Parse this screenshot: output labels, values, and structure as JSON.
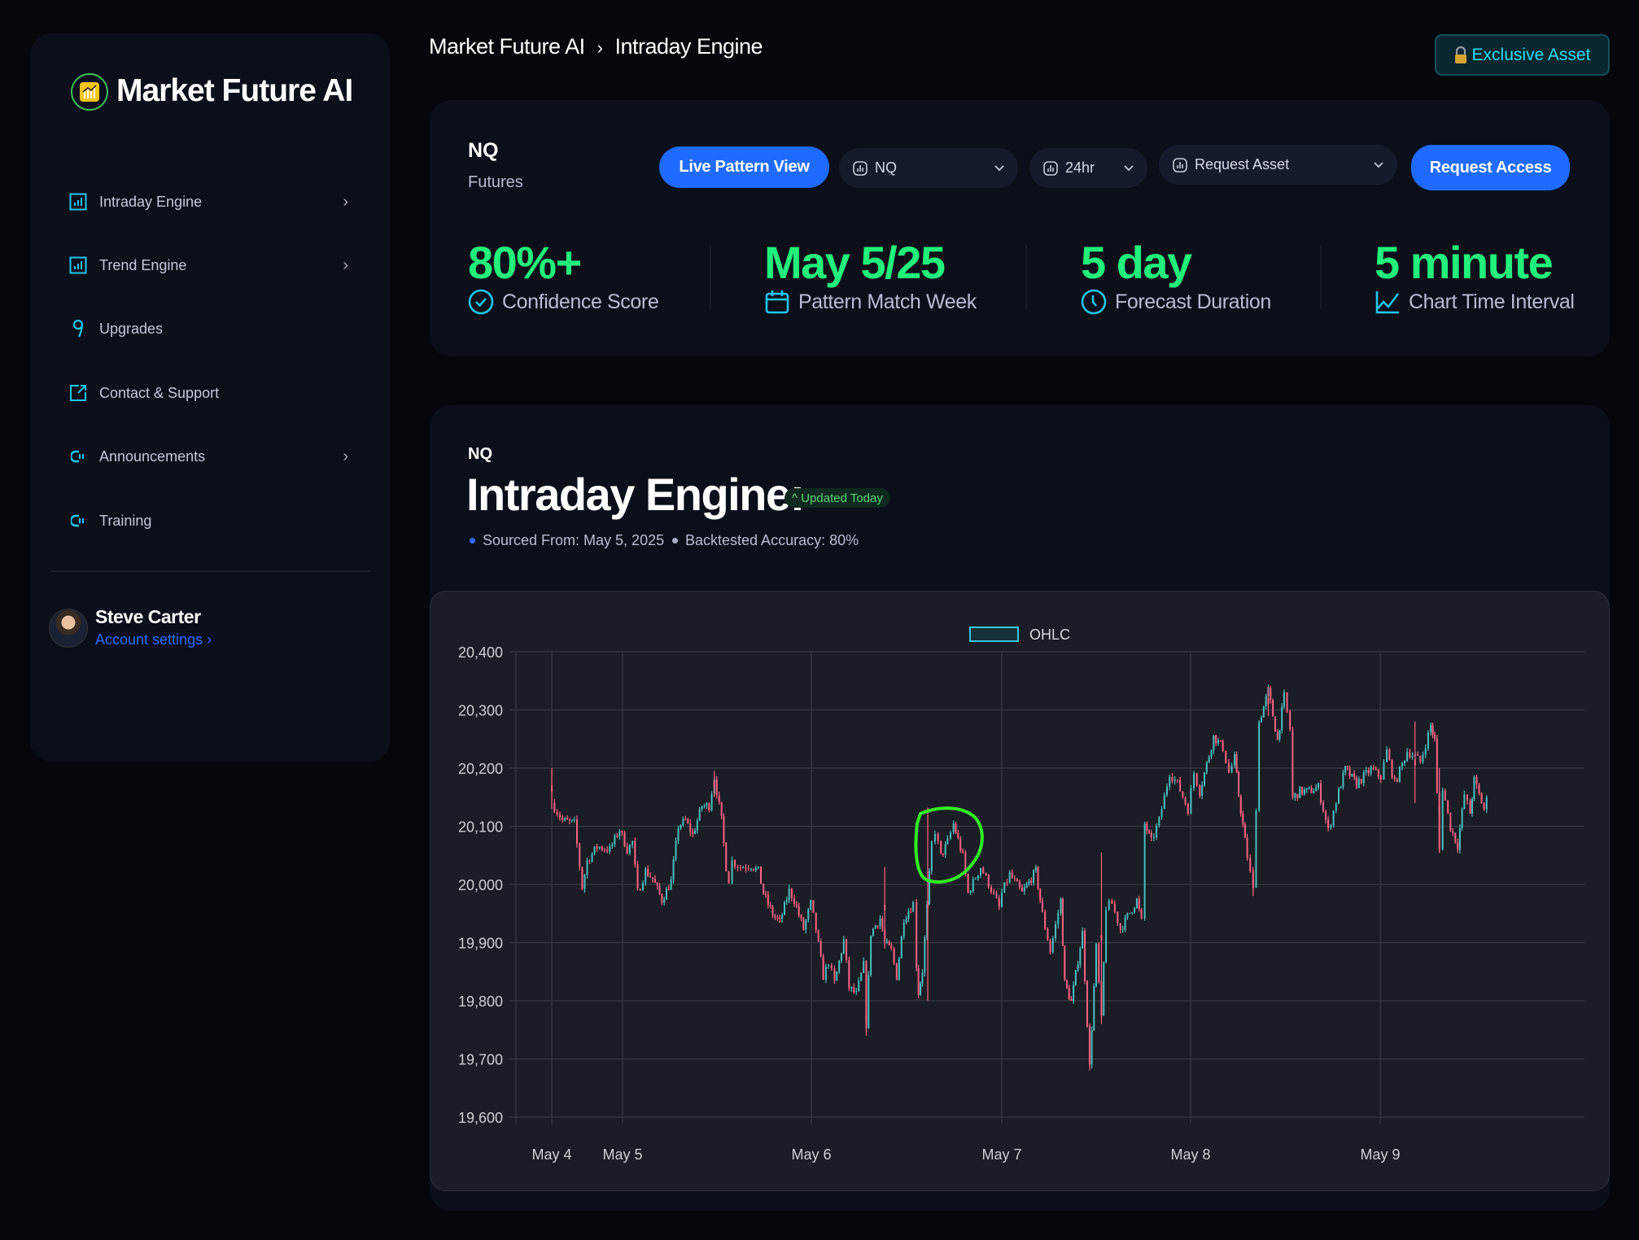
{
  "brand": {
    "name": "Market Future AI"
  },
  "sidebar": {
    "items": [
      {
        "label": "Intraday Engine",
        "icon": "bar-chart-icon",
        "chevron": true
      },
      {
        "label": "Trend Engine",
        "icon": "bar-chart-icon",
        "chevron": true
      },
      {
        "label": "Upgrades",
        "icon": "location-pin-icon",
        "chevron": false
      },
      {
        "label": "Contact & Support",
        "icon": "external-link-icon",
        "chevron": false
      },
      {
        "label": "Announcements",
        "icon": "megaphone-icon",
        "chevron": true
      },
      {
        "label": "Training",
        "icon": "megaphone-icon",
        "chevron": false
      }
    ],
    "user": {
      "name": "Steve Carter",
      "account_link": "Account settings"
    }
  },
  "breadcrumb": {
    "root": "Market Future AI",
    "separator": "›",
    "current": "Intraday Engine"
  },
  "header": {
    "exclusive_label": "Exclusive Asset",
    "exclusive_icon": "lock-icon"
  },
  "asset": {
    "symbol": "NQ",
    "type": "Futures"
  },
  "controls": {
    "live_pattern_label": "Live Pattern View",
    "symbol_select": "NQ",
    "range_select": "24hr",
    "request_asset_select": "Request Asset",
    "request_access_label": "Request Access"
  },
  "stats": [
    {
      "value": "80%+",
      "label": "Confidence Score",
      "icon": "check-circle-icon"
    },
    {
      "value": "May 5/25",
      "label": "Pattern Match Week",
      "icon": "calendar-icon"
    },
    {
      "value": "5 day",
      "label": "Forecast Duration",
      "icon": "clock-icon"
    },
    {
      "value": "5 minute",
      "label": "Chart Time Interval",
      "icon": "line-chart-icon"
    }
  ],
  "engine": {
    "symbol": "NQ",
    "title": "Intraday Engine:",
    "badge": "^ Updated Today",
    "sourced": "Sourced From: May 5, 2025",
    "accuracy": "Backtested Accuracy: 80%"
  },
  "colors": {
    "accent": "#1f6bff",
    "stat_green": "#21f07a",
    "cyan": "#25e0ee",
    "up": "#4bc0c0",
    "down": "#ff6384",
    "annotation": "#33ee22"
  },
  "chart_data": {
    "type": "candlestick",
    "legend": "OHLC",
    "legend_position": "top",
    "ylim": [
      19600,
      20400
    ],
    "yticks": [
      "20,400",
      "20,300",
      "20,200",
      "20,100",
      "20,000",
      "19,900",
      "19,800",
      "19,700",
      "19,600"
    ],
    "xticks": [
      "May 4",
      "May 5",
      "May 6",
      "May 7",
      "May 8",
      "May 9"
    ],
    "interval": "5 minute",
    "grid": true,
    "close_path": [
      [
        "2025-05-04T18:00",
        20140
      ],
      [
        "2025-05-04T18:55",
        20110
      ],
      [
        "2025-05-04T19:55",
        20105
      ],
      [
        "2025-05-04T20:35",
        19995
      ],
      [
        "2025-05-04T21:00",
        20040
      ],
      [
        "2025-05-04T21:50",
        20065
      ],
      [
        "2025-05-04T22:55",
        20060
      ],
      [
        "2025-05-04T23:45",
        20095
      ],
      [
        "2025-05-05T00:35",
        20060
      ],
      [
        "2025-05-05T01:15",
        20073
      ],
      [
        "2025-05-05T01:55",
        19985
      ],
      [
        "2025-05-05T02:55",
        20023
      ],
      [
        "2025-05-05T03:50",
        20010
      ],
      [
        "2025-05-05T05:00",
        19973
      ],
      [
        "2025-05-05T06:10",
        20005
      ],
      [
        "2025-05-05T07:05",
        20100
      ],
      [
        "2025-05-05T08:00",
        20110
      ],
      [
        "2025-05-05T08:55",
        20085
      ],
      [
        "2025-05-05T10:05",
        20135
      ],
      [
        "2025-05-05T11:00",
        20135
      ],
      [
        "2025-05-05T11:40",
        20185
      ],
      [
        "2025-05-05T12:35",
        20110
      ],
      [
        "2025-05-05T13:10",
        20030
      ],
      [
        "2025-05-05T13:30",
        20008
      ],
      [
        "2025-05-05T13:55",
        20040
      ],
      [
        "2025-05-05T15:00",
        20030
      ],
      [
        "2025-05-05T16:20",
        20033
      ],
      [
        "2025-05-05T17:15",
        20023
      ],
      [
        "2025-05-05T17:55",
        19985
      ],
      [
        "2025-05-05T19:05",
        19948
      ],
      [
        "2025-05-05T20:00",
        19935
      ],
      [
        "2025-05-05T21:10",
        19989
      ],
      [
        "2025-05-05T21:50",
        19973
      ],
      [
        "2025-05-05T23:00",
        19923
      ],
      [
        "2025-05-05T23:55",
        19967
      ],
      [
        "2025-05-06T00:35",
        19923
      ],
      [
        "2025-05-06T01:30",
        19842
      ],
      [
        "2025-05-06T02:10",
        19867
      ],
      [
        "2025-05-06T02:55",
        19830
      ],
      [
        "2025-05-06T04:05",
        19904
      ],
      [
        "2025-05-06T04:45",
        19823
      ],
      [
        "2025-05-06T05:40",
        19811
      ],
      [
        "2025-05-06T06:35",
        19861
      ],
      [
        "2025-05-06T06:55",
        19760
      ],
      [
        "2025-05-06T07:30",
        19917
      ],
      [
        "2025-05-06T08:40",
        19942
      ],
      [
        "2025-05-06T09:15",
        19900
      ],
      [
        "2025-05-06T10:05",
        19886
      ],
      [
        "2025-05-06T10:45",
        19842
      ],
      [
        "2025-05-06T11:40",
        19942
      ],
      [
        "2025-05-06T12:50",
        19967
      ],
      [
        "2025-05-06T13:15",
        19861
      ],
      [
        "2025-05-06T13:30",
        19814
      ],
      [
        "2025-05-06T14:00",
        19852
      ],
      [
        "2025-05-06T15:10",
        20070
      ],
      [
        "2025-05-06T15:35",
        20092
      ],
      [
        "2025-05-06T16:20",
        20048
      ],
      [
        "2025-05-06T17:10",
        20073
      ],
      [
        "2025-05-06T17:55",
        20104
      ],
      [
        "2025-05-06T19:05",
        20048
      ],
      [
        "2025-05-06T19:45",
        19985
      ],
      [
        "2025-05-06T21:20",
        20030
      ],
      [
        "2025-05-06T22:40",
        19992
      ],
      [
        "2025-05-06T23:40",
        19960
      ],
      [
        "2025-05-07T00:00",
        19985
      ],
      [
        "2025-05-07T01:00",
        20017
      ],
      [
        "2025-05-07T02:35",
        19985
      ],
      [
        "2025-05-07T04:20",
        20023
      ],
      [
        "2025-05-07T05:10",
        19948
      ],
      [
        "2025-05-07T06:10",
        19886
      ],
      [
        "2025-05-07T07:30",
        19973
      ],
      [
        "2025-05-07T08:00",
        19830
      ],
      [
        "2025-05-07T08:50",
        19798
      ],
      [
        "2025-05-07T10:15",
        19917
      ],
      [
        "2025-05-07T11:10",
        19686
      ],
      [
        "2025-05-07T12:00",
        19892
      ],
      [
        "2025-05-07T12:40",
        19767
      ],
      [
        "2025-05-07T13:15",
        19961
      ],
      [
        "2025-05-07T14:00",
        19967
      ],
      [
        "2025-05-07T15:05",
        19923
      ],
      [
        "2025-05-07T17:10",
        19973
      ],
      [
        "2025-05-07T17:45",
        19936
      ],
      [
        "2025-05-07T18:10",
        20104
      ],
      [
        "2025-05-07T19:00",
        20073
      ],
      [
        "2025-05-07T20:00",
        20110
      ],
      [
        "2025-05-07T21:20",
        20192
      ],
      [
        "2025-05-07T22:20",
        20173
      ],
      [
        "2025-05-07T23:40",
        20129
      ],
      [
        "2025-05-08T00:25",
        20192
      ],
      [
        "2025-05-08T01:10",
        20160
      ],
      [
        "2025-05-08T02:55",
        20254
      ],
      [
        "2025-05-08T04:05",
        20235
      ],
      [
        "2025-05-08T04:50",
        20192
      ],
      [
        "2025-05-08T05:35",
        20217
      ],
      [
        "2025-05-08T06:05",
        20154
      ],
      [
        "2025-05-08T07:10",
        20048
      ],
      [
        "2025-05-08T07:55",
        19990
      ],
      [
        "2025-05-08T08:40",
        20279
      ],
      [
        "2025-05-08T09:50",
        20333
      ],
      [
        "2025-05-08T11:00",
        20248
      ],
      [
        "2025-05-08T11:50",
        20323
      ],
      [
        "2025-05-08T12:35",
        20267
      ],
      [
        "2025-05-08T12:55",
        20148
      ],
      [
        "2025-05-08T13:50",
        20160
      ],
      [
        "2025-05-08T15:00",
        20160
      ],
      [
        "2025-05-08T16:10",
        20167
      ],
      [
        "2025-05-08T17:25",
        20092
      ],
      [
        "2025-05-08T18:45",
        20160
      ],
      [
        "2025-05-08T19:35",
        20198
      ],
      [
        "2025-05-08T21:00",
        20173
      ],
      [
        "2025-05-08T22:50",
        20198
      ],
      [
        "2025-05-09T00:05",
        20185
      ],
      [
        "2025-05-09T00:50",
        20229
      ],
      [
        "2025-05-09T01:50",
        20173
      ],
      [
        "2025-05-09T03:25",
        20229
      ],
      [
        "2025-05-09T04:25",
        20220
      ],
      [
        "2025-05-09T05:05",
        20210
      ],
      [
        "2025-05-09T06:25",
        20273
      ],
      [
        "2025-05-09T06:55",
        20248
      ],
      [
        "2025-05-09T07:30",
        20060
      ],
      [
        "2025-05-09T07:55",
        20167
      ],
      [
        "2025-05-09T08:55",
        20098
      ],
      [
        "2025-05-09T09:50",
        20067
      ],
      [
        "2025-05-09T10:40",
        20154
      ],
      [
        "2025-05-09T11:25",
        20123
      ],
      [
        "2025-05-09T11:55",
        20179
      ],
      [
        "2025-05-09T13:10",
        20129
      ],
      [
        "2025-05-09T13:30",
        20145
      ]
    ],
    "extreme_wicks": [
      {
        "t": "2025-05-04T18:00",
        "high": 20200,
        "low": 20130
      },
      {
        "t": "2025-05-05T11:40",
        "high": 20195,
        "low": 20150
      },
      {
        "t": "2025-05-06T06:55",
        "high": 19800,
        "low": 19740
      },
      {
        "t": "2025-05-06T09:15",
        "high": 20030,
        "low": 19890
      },
      {
        "t": "2025-05-06T14:40",
        "high": 20132,
        "low": 19800
      },
      {
        "t": "2025-05-07T11:10",
        "high": 19720,
        "low": 19680
      },
      {
        "t": "2025-05-07T12:40",
        "high": 20055,
        "low": 19760
      },
      {
        "t": "2025-05-08T07:55",
        "high": 20030,
        "low": 19980
      },
      {
        "t": "2025-05-08T09:50",
        "high": 20340,
        "low": 20290
      },
      {
        "t": "2025-05-09T04:25",
        "high": 20280,
        "low": 20140
      },
      {
        "t": "2025-05-09T07:30",
        "high": 20200,
        "low": 20055
      }
    ]
  }
}
